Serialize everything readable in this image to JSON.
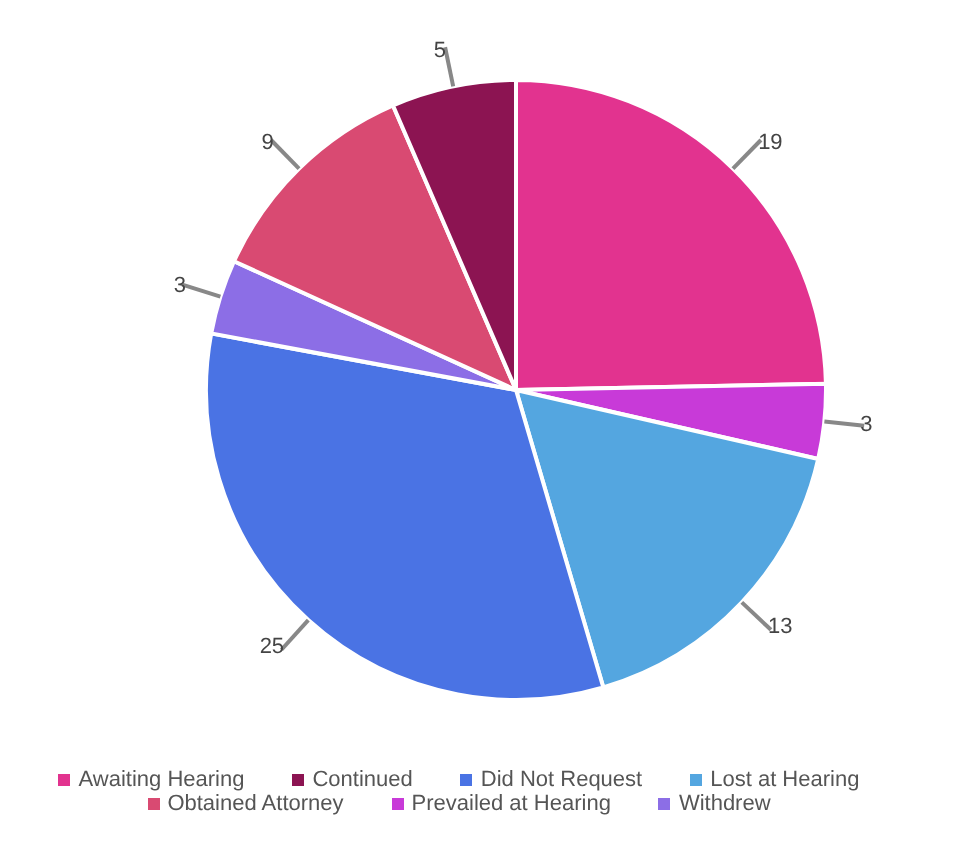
{
  "chart_data": {
    "type": "pie",
    "categories": [
      "Awaiting Hearing",
      "Prevailed at Hearing",
      "Lost at Hearing",
      "Did Not Request",
      "Withdrew",
      "Obtained Attorney",
      "Continued"
    ],
    "values": [
      19,
      3,
      13,
      25,
      3,
      9,
      5
    ],
    "colors": [
      "#e2338f",
      "#c83ad8",
      "#54a6e0",
      "#4a73e4",
      "#8c6ee6",
      "#d94a72",
      "#8c1452"
    ],
    "data_labels": true,
    "legend": "bottom"
  }
}
